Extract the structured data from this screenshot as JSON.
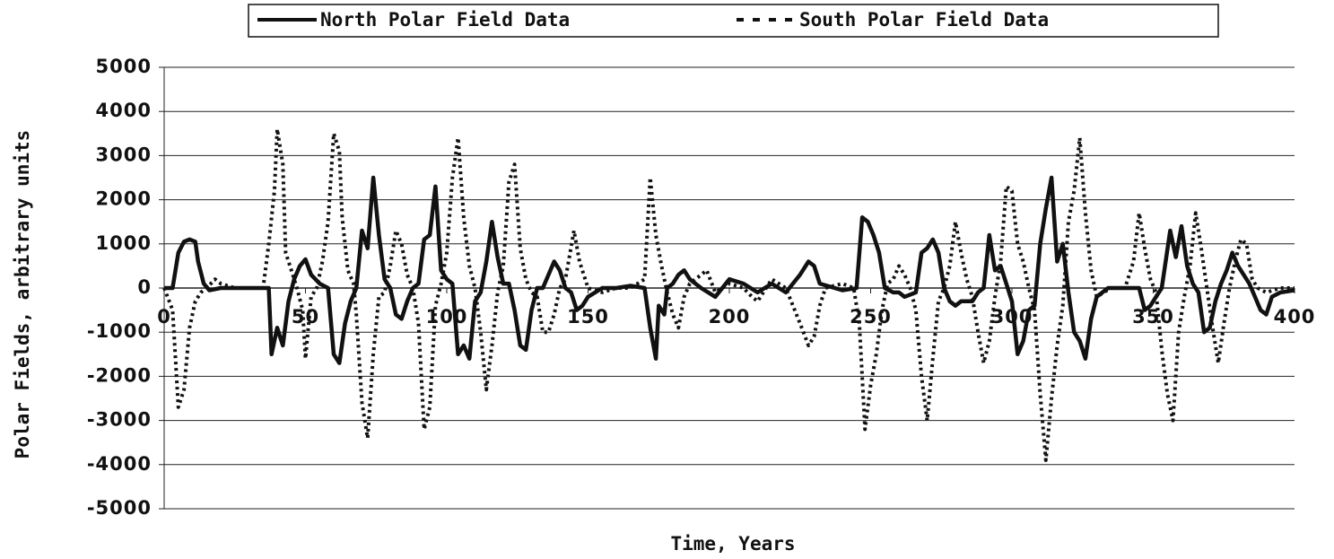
{
  "chart_data": {
    "type": "line",
    "xlabel": "Time, Years",
    "ylabel": "Polar Fields, arbitrary units",
    "xlim": [
      0,
      400
    ],
    "xticks": [
      0,
      50,
      100,
      150,
      200,
      250,
      300,
      350,
      400
    ],
    "ylim": [
      -5000,
      5000
    ],
    "yticks": [
      -5000,
      -4000,
      -3000,
      -2000,
      -1000,
      0,
      1000,
      2000,
      3000,
      4000,
      5000
    ],
    "grid": true,
    "series": [
      {
        "name": "North Polar Field Data",
        "color": "#111111",
        "style": "solid",
        "x": [
          0,
          3,
          5,
          7,
          9,
          11,
          12,
          14,
          16,
          20,
          37,
          38,
          40,
          42,
          44,
          46,
          48,
          50,
          52,
          55,
          58,
          60,
          62,
          64,
          66,
          68,
          70,
          72,
          74,
          76,
          78,
          80,
          82,
          84,
          86,
          88,
          90,
          92,
          94,
          96,
          98,
          100,
          102,
          104,
          106,
          108,
          110,
          112,
          114,
          116,
          118,
          120,
          122,
          124,
          126,
          128,
          130,
          132,
          134,
          136,
          138,
          140,
          142,
          144,
          146,
          148,
          150,
          155,
          160,
          165,
          170,
          172,
          174,
          175,
          177,
          178,
          180,
          182,
          184,
          186,
          190,
          195,
          200,
          205,
          210,
          215,
          220,
          225,
          228,
          230,
          232,
          240,
          245,
          247,
          249,
          251,
          253,
          255,
          258,
          260,
          262,
          266,
          268,
          270,
          272,
          274,
          276,
          278,
          280,
          282,
          284,
          286,
          288,
          290,
          292,
          294,
          296,
          298,
          300,
          302,
          304,
          306,
          308,
          310,
          312,
          314,
          316,
          318,
          320,
          322,
          324,
          326,
          328,
          330,
          334,
          340,
          345,
          347,
          349,
          351,
          353,
          356,
          358,
          360,
          362,
          364,
          366,
          368,
          370,
          372,
          374,
          376,
          378,
          380,
          382,
          384,
          386,
          388,
          390,
          392,
          395,
          400
        ],
        "values": [
          0,
          0,
          800,
          1050,
          1100,
          1050,
          600,
          100,
          -50,
          0,
          0,
          -1500,
          -900,
          -1300,
          -300,
          200,
          500,
          650,
          300,
          100,
          0,
          -1500,
          -1700,
          -800,
          -300,
          0,
          1300,
          900,
          2500,
          1200,
          200,
          0,
          -600,
          -700,
          -300,
          0,
          100,
          1100,
          1200,
          2300,
          400,
          200,
          100,
          -1500,
          -1300,
          -1600,
          -300,
          -100,
          600,
          1500,
          700,
          100,
          100,
          -500,
          -1300,
          -1400,
          -500,
          0,
          0,
          300,
          600,
          400,
          0,
          -100,
          -500,
          -400,
          -200,
          0,
          0,
          50,
          0,
          -900,
          -1600,
          -400,
          -600,
          0,
          100,
          300,
          400,
          200,
          0,
          -200,
          200,
          100,
          -100,
          100,
          -100,
          300,
          600,
          500,
          100,
          -50,
          0,
          1600,
          1500,
          1200,
          800,
          0,
          -100,
          -100,
          -200,
          -100,
          800,
          900,
          1100,
          800,
          0,
          -300,
          -400,
          -300,
          -300,
          -300,
          -100,
          0,
          1200,
          400,
          500,
          100,
          -300,
          -1500,
          -1200,
          -500,
          -400,
          1000,
          1800,
          2500,
          600,
          1000,
          -100,
          -1000,
          -1200,
          -1600,
          -700,
          -200,
          0,
          0,
          0,
          -500,
          -400,
          -200,
          0,
          1300,
          700,
          1400,
          500,
          100,
          -100,
          -1000,
          -900,
          -300,
          100,
          400,
          800,
          500,
          300,
          100,
          -200,
          -500,
          -600,
          -200,
          -100,
          -50
        ]
      },
      {
        "name": "South Polar Field Data",
        "color": "#111111",
        "style": "dotted",
        "x": [
          0,
          3,
          5,
          7,
          9,
          11,
          13,
          15,
          18,
          20,
          25,
          35,
          37,
          39,
          40,
          42,
          43,
          45,
          47,
          49,
          50,
          52,
          54,
          56,
          58,
          60,
          62,
          63,
          65,
          67,
          68,
          70,
          72,
          74,
          76,
          78,
          80,
          82,
          84,
          86,
          88,
          90,
          92,
          94,
          96,
          98,
          100,
          102,
          104,
          106,
          108,
          110,
          112,
          114,
          116,
          118,
          120,
          122,
          124,
          126,
          128,
          130,
          132,
          134,
          136,
          138,
          140,
          142,
          145,
          147,
          150,
          155,
          160,
          165,
          170,
          172,
          174,
          176,
          178,
          180,
          182,
          184,
          186,
          190,
          192,
          195,
          200,
          205,
          208,
          210,
          215,
          220,
          225,
          228,
          230,
          232,
          234,
          240,
          244,
          246,
          248,
          250,
          252,
          254,
          256,
          258,
          260,
          262,
          264,
          266,
          268,
          270,
          272,
          274,
          276,
          278,
          280,
          282,
          284,
          286,
          288,
          290,
          292,
          294,
          296,
          298,
          300,
          302,
          304,
          306,
          308,
          310,
          312,
          314,
          316,
          318,
          320,
          322,
          324,
          326,
          328,
          330,
          335,
          340,
          343,
          345,
          347,
          349,
          351,
          353,
          355,
          357,
          359,
          361,
          363,
          365,
          367,
          369,
          371,
          373,
          375,
          377,
          379,
          381,
          383,
          385,
          387,
          390,
          395,
          400
        ],
        "values": [
          0,
          -500,
          -2700,
          -2300,
          -900,
          -300,
          -100,
          0,
          200,
          100,
          0,
          0,
          1000,
          2200,
          3600,
          2800,
          800,
          400,
          0,
          -500,
          -1600,
          -200,
          0,
          600,
          1500,
          3500,
          3100,
          1600,
          400,
          100,
          -600,
          -2600,
          -3400,
          -1500,
          -200,
          -100,
          500,
          1300,
          1000,
          300,
          0,
          -800,
          -3200,
          -2700,
          -400,
          100,
          800,
          2500,
          3400,
          1600,
          500,
          0,
          -1000,
          -2300,
          -1300,
          -100,
          500,
          2400,
          2800,
          900,
          200,
          -100,
          -200,
          -1000,
          -1000,
          -600,
          0,
          200,
          1300,
          600,
          0,
          -100,
          0,
          0,
          200,
          2500,
          1200,
          500,
          -100,
          -600,
          -900,
          -200,
          100,
          300,
          400,
          -100,
          100,
          0,
          -200,
          -300,
          200,
          0,
          -800,
          -1300,
          -1100,
          -400,
          0,
          100,
          0,
          -800,
          -3200,
          -2200,
          -1500,
          -500,
          100,
          200,
          500,
          300,
          0,
          -500,
          -2000,
          -3000,
          -1600,
          -300,
          0,
          500,
          1500,
          800,
          200,
          -200,
          -1000,
          -1700,
          -1200,
          -200,
          600,
          2300,
          2200,
          1000,
          600,
          0,
          -500,
          -2400,
          -3900,
          -2500,
          -1300,
          -400,
          1500,
          2200,
          3400,
          1700,
          400,
          -200,
          0,
          0,
          600,
          1700,
          900,
          200,
          -100,
          -1400,
          -2400,
          -3000,
          -1000,
          -200,
          500,
          1700,
          900,
          0,
          -900,
          -1700,
          -800,
          0,
          600,
          1100,
          1000,
          200,
          0,
          -100,
          0,
          0
        ]
      }
    ]
  }
}
